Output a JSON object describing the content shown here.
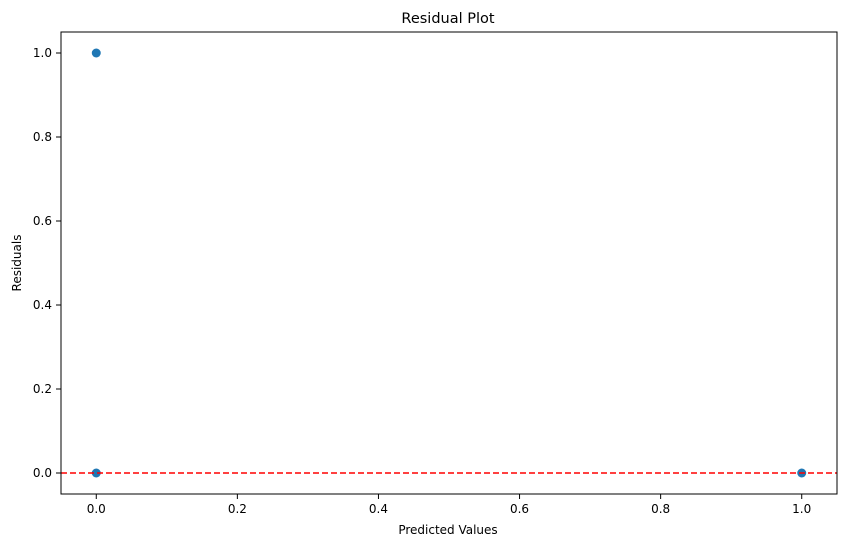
{
  "chart_data": {
    "type": "scatter",
    "title": "Residual Plot",
    "xlabel": "Predicted Values",
    "ylabel": "Residuals",
    "xlim": [
      -0.05,
      1.05
    ],
    "ylim": [
      -0.05,
      1.05
    ],
    "x_ticks": [
      "0.0",
      "0.2",
      "0.4",
      "0.6",
      "0.8",
      "1.0"
    ],
    "y_ticks": [
      "0.0",
      "0.2",
      "0.4",
      "0.6",
      "0.8",
      "1.0"
    ],
    "grid": false,
    "point_color": "#1f77b4",
    "points": [
      {
        "x": 0,
        "y": 1
      },
      {
        "x": 0,
        "y": 0
      },
      {
        "x": 1,
        "y": 0
      }
    ],
    "reference_line": {
      "y": 0,
      "color": "#ff0000",
      "style": "dashed"
    }
  }
}
